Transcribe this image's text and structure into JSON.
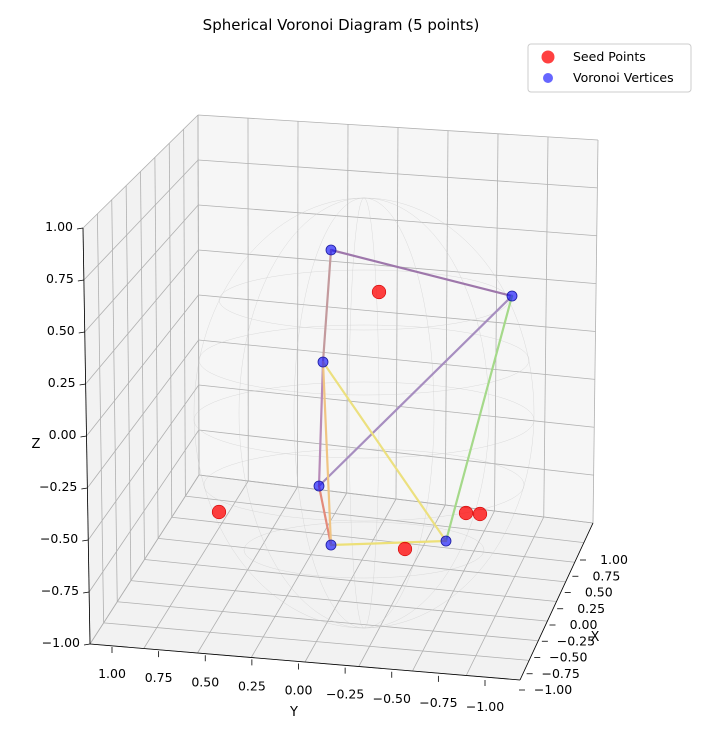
{
  "chart_data": {
    "type": "scatter",
    "projection": "3d",
    "title": "Spherical Voronoi Diagram (5 points)",
    "xlabel": "X",
    "ylabel": "Y",
    "zlabel": "Z",
    "xlim": [
      -1,
      1
    ],
    "ylim": [
      -1,
      1
    ],
    "zlim": [
      -1,
      1
    ],
    "x_ticks": [
      "−1.00",
      "−0.75",
      "−0.50",
      "−0.25",
      "0.00",
      "0.25",
      "0.50",
      "0.75",
      "1.00"
    ],
    "y_ticks": [
      "1.00",
      "0.75",
      "0.50",
      "0.25",
      "0.00",
      "−0.25",
      "−0.50",
      "−0.75",
      "−1.00"
    ],
    "z_ticks": [
      "−1.00",
      "−0.75",
      "−0.50",
      "−0.25",
      "0.00",
      "0.25",
      "0.50",
      "0.75",
      "1.00"
    ],
    "grid": true,
    "legend_position": "top-right",
    "series": [
      {
        "name": "Seed Points",
        "color": "#ff0000",
        "points": [
          {
            "x": -0.21,
            "y": -0.15,
            "z": 0.97
          },
          {
            "x": 0.55,
            "y": 0.82,
            "z": -0.2
          },
          {
            "x": -0.48,
            "y": -0.1,
            "z": -0.87
          },
          {
            "x": -0.68,
            "y": -0.45,
            "z": -0.58
          },
          {
            "x": -0.63,
            "y": -0.6,
            "z": -0.5
          }
        ]
      },
      {
        "name": "Voronoi Vertices",
        "color": "#0000ff",
        "points": [
          {
            "x": 0.3,
            "y": 0.16,
            "z": 0.94
          },
          {
            "x": -0.15,
            "y": -0.99,
            "z": 0.05
          },
          {
            "x": 0.47,
            "y": 0.17,
            "z": 0.37
          },
          {
            "x": 0.58,
            "y": 0.31,
            "z": -0.75
          },
          {
            "x": 0.36,
            "y": 0.35,
            "z": -0.4
          },
          {
            "x": -0.34,
            "y": -0.61,
            "z": -0.72
          }
        ]
      }
    ],
    "edges": [
      {
        "from": 0,
        "to": 1,
        "color": "#9e77ab"
      },
      {
        "from": 0,
        "to": 2,
        "color": "#c39a9d"
      },
      {
        "from": 2,
        "to": 4,
        "color": "#b88bb8"
      },
      {
        "from": 4,
        "to": 1,
        "color": "#a78ec0"
      },
      {
        "from": 1,
        "to": 5,
        "color": "#a5d98a"
      },
      {
        "from": 2,
        "to": 5,
        "color": "#ece07f"
      },
      {
        "from": 4,
        "to": 3,
        "color": "#e38a7a"
      },
      {
        "from": 2,
        "to": 3,
        "color": "#f0c483"
      },
      {
        "from": 3,
        "to": 5,
        "color": "#ede078"
      }
    ]
  },
  "legend": {
    "seed_label": "Seed Points",
    "vertex_label": "Voronoi Vertices"
  }
}
